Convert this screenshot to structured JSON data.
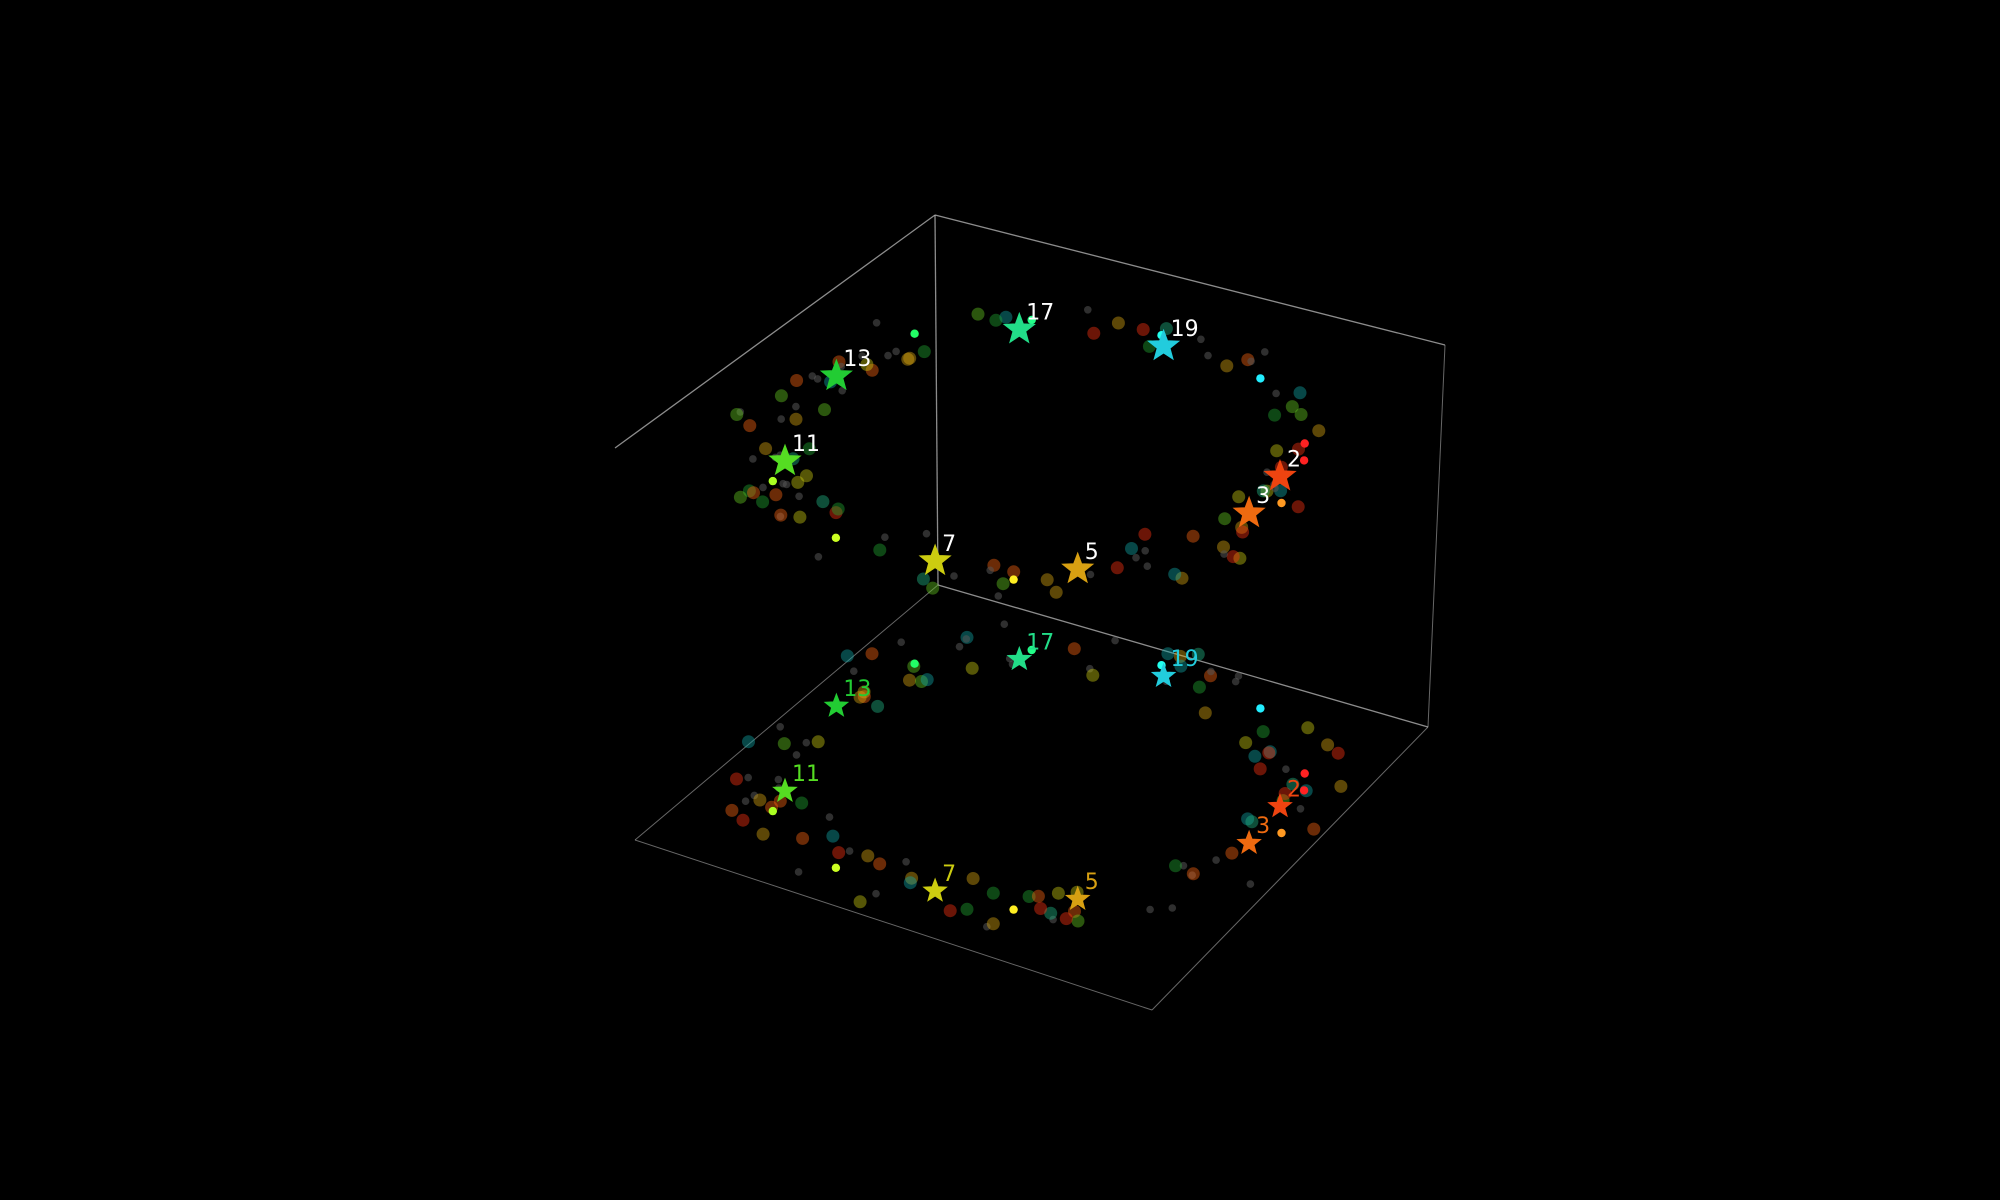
{
  "chart_data": {
    "type": "scatter",
    "dimensions": "3d",
    "background": "#000000",
    "box_edge_color": "#bbbbbb",
    "grid": false,
    "axes_visible": false,
    "description": "Two rings (upper floating ring and its projection on the floor plane) with prime numbers highlighted as stars",
    "top_label_color": "#ffffff",
    "primes": [
      {
        "label": "2",
        "color": "#ee4410"
      },
      {
        "label": "3",
        "color": "#ee6a10"
      },
      {
        "label": "5",
        "color": "#d8a012"
      },
      {
        "label": "7",
        "color": "#cccc10"
      },
      {
        "label": "11",
        "color": "#55dd22"
      },
      {
        "label": "13",
        "color": "#22cc33"
      },
      {
        "label": "17",
        "color": "#22dd88"
      },
      {
        "label": "19",
        "color": "#22ccdd"
      }
    ]
  }
}
